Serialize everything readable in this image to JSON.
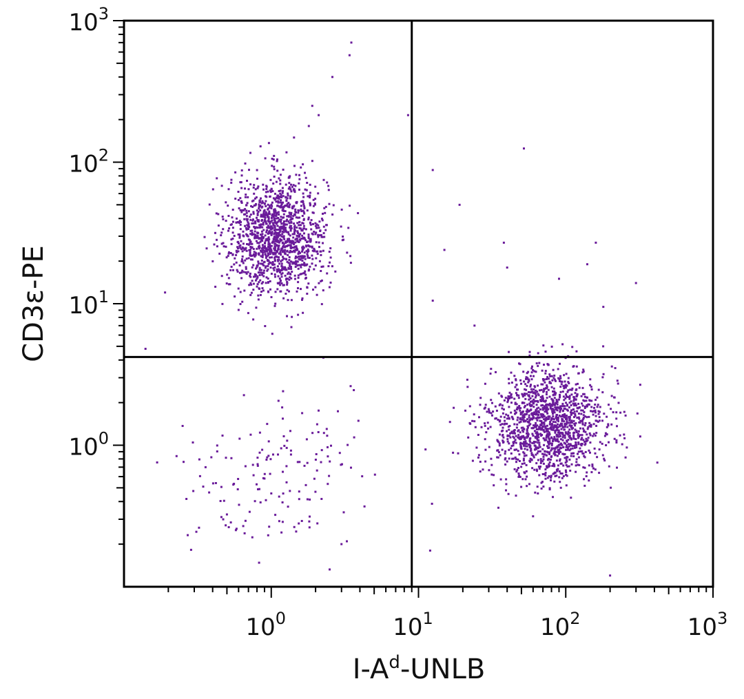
{
  "chart_data": {
    "type": "scatter",
    "title": "",
    "xlabel": {
      "base": "I-A",
      "sup": "d",
      "rest": "-UNLB"
    },
    "ylabel": "CD3ε-PE",
    "x_scale": "log",
    "y_scale": "log",
    "xlim": [
      0.1,
      1000
    ],
    "ylim": [
      0.1,
      1000
    ],
    "x_ticks": [
      {
        "base": "10",
        "exp": "0"
      },
      {
        "base": "10",
        "exp": "1"
      },
      {
        "base": "10",
        "exp": "2"
      },
      {
        "base": "10",
        "exp": "3"
      }
    ],
    "y_ticks": [
      {
        "base": "10",
        "exp": "0"
      },
      {
        "base": "10",
        "exp": "1"
      },
      {
        "base": "10",
        "exp": "2"
      },
      {
        "base": "10",
        "exp": "3"
      }
    ],
    "quadrant_gates": {
      "x": 9,
      "y": 4.2
    },
    "dot_color": "#6a1b9a",
    "grid": false,
    "populations": [
      {
        "name": "",
        "center": [
          1.1,
          30
        ],
        "count": 1400
      },
      {
        "name": "",
        "center": [
          75,
          1.4
        ],
        "count": 1500
      },
      {
        "name": "",
        "center": [
          1.0,
          0.6
        ],
        "count": 160
      }
    ],
    "outliers": [
      [
        3.5,
        700
      ],
      [
        3.4,
        570
      ],
      [
        2.6,
        400
      ],
      [
        1.9,
        250
      ],
      [
        2.1,
        215
      ],
      [
        8.5,
        215
      ],
      [
        1.8,
        180
      ],
      [
        52,
        125
      ],
      [
        12.5,
        88
      ],
      [
        19,
        50
      ],
      [
        160,
        27
      ],
      [
        38,
        27
      ],
      [
        15,
        24
      ],
      [
        140,
        19
      ],
      [
        40,
        18
      ],
      [
        90,
        15
      ],
      [
        300,
        14
      ],
      [
        12.5,
        10.5
      ],
      [
        180,
        9.5
      ],
      [
        0.19,
        12
      ],
      [
        0.14,
        4.8
      ],
      [
        24,
        7
      ],
      [
        3,
        0.2
      ],
      [
        12,
        0.18
      ],
      [
        200,
        0.12
      ]
    ]
  }
}
